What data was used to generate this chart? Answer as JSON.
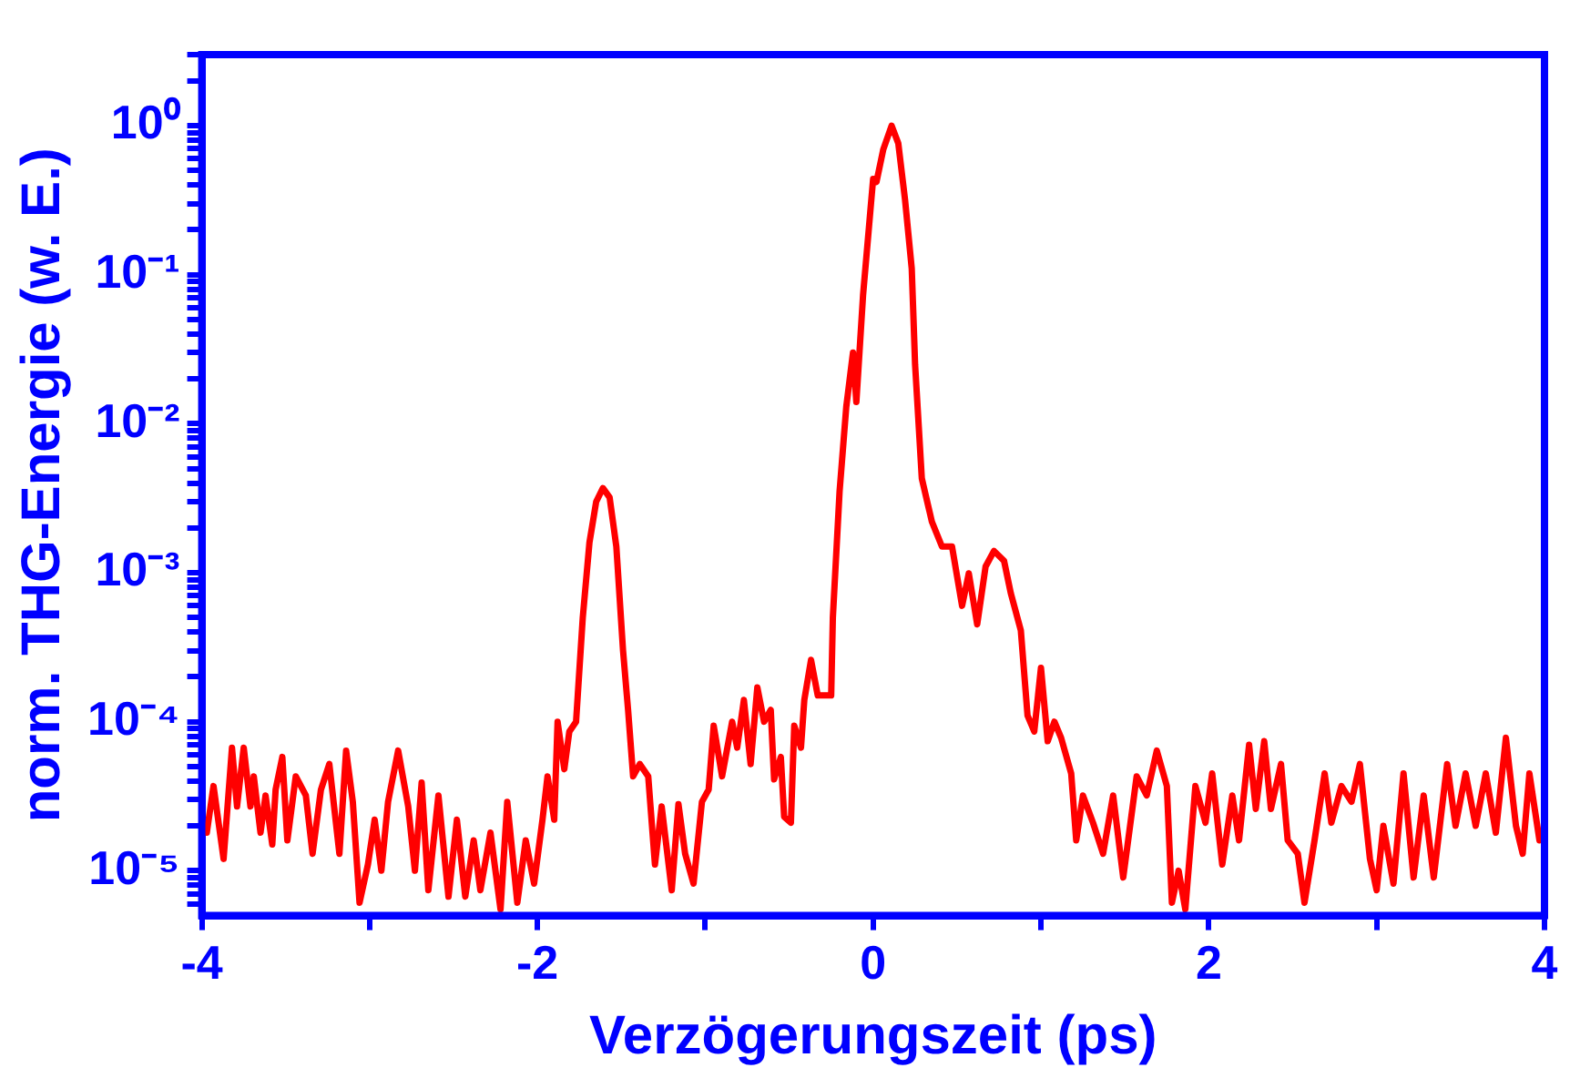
{
  "chart_data": {
    "type": "line",
    "xlabel": "Verzögerungszeit (ps)",
    "ylabel": "norm. THG-Energie (w. E.)",
    "log": "y",
    "grid": false,
    "legend": false,
    "marker": "none",
    "line_style": "solid",
    "xlim": [
      -4,
      4
    ],
    "xticks": [
      -4,
      {
        "value": -3,
        "label": null
      },
      -2,
      {
        "value": -1,
        "label": null
      },
      0,
      {
        "value": 1,
        "label": null
      },
      2,
      {
        "value": 3,
        "label": null
      },
      4
    ],
    "ylim": [
      5e-06,
      3
    ],
    "yticks": [
      {
        "value": 6e-06,
        "label": null
      },
      {
        "value": 7e-06,
        "label": null
      },
      {
        "value": 8e-06,
        "label": null
      },
      {
        "value": 9e-06,
        "label": null
      },
      {
        "value": 1e-05,
        "label": "10⁻⁵"
      },
      {
        "value": 2e-05,
        "label": null
      },
      {
        "value": 3e-05,
        "label": null
      },
      {
        "value": 4e-05,
        "label": null
      },
      {
        "value": 5e-05,
        "label": null
      },
      {
        "value": 6e-05,
        "label": null
      },
      {
        "value": 7e-05,
        "label": null
      },
      {
        "value": 8e-05,
        "label": null
      },
      {
        "value": 9e-05,
        "label": null
      },
      {
        "value": 0.0001,
        "label": "10⁻⁴"
      },
      {
        "value": 0.0002,
        "label": null
      },
      {
        "value": 0.0003,
        "label": null
      },
      {
        "value": 0.0004,
        "label": null
      },
      {
        "value": 0.0005,
        "label": null
      },
      {
        "value": 0.0006,
        "label": null
      },
      {
        "value": 0.0007,
        "label": null
      },
      {
        "value": 0.0008,
        "label": null
      },
      {
        "value": 0.0009,
        "label": null
      },
      {
        "value": 0.001,
        "label": "10⁻³"
      },
      {
        "value": 0.002,
        "label": null
      },
      {
        "value": 0.003,
        "label": null
      },
      {
        "value": 0.004,
        "label": null
      },
      {
        "value": 0.005,
        "label": null
      },
      {
        "value": 0.006,
        "label": null
      },
      {
        "value": 0.007,
        "label": null
      },
      {
        "value": 0.008,
        "label": null
      },
      {
        "value": 0.009,
        "label": null
      },
      {
        "value": 0.01,
        "label": "10⁻²"
      },
      {
        "value": 0.02,
        "label": null
      },
      {
        "value": 0.03,
        "label": null
      },
      {
        "value": 0.04,
        "label": null
      },
      {
        "value": 0.05,
        "label": null
      },
      {
        "value": 0.06,
        "label": null
      },
      {
        "value": 0.07,
        "label": null
      },
      {
        "value": 0.08,
        "label": null
      },
      {
        "value": 0.09,
        "label": null
      },
      {
        "value": 0.1,
        "label": "10⁻¹"
      },
      {
        "value": 0.2,
        "label": null
      },
      {
        "value": 0.3,
        "label": null
      },
      {
        "value": 0.4,
        "label": null
      },
      {
        "value": 0.5,
        "label": null
      },
      {
        "value": 0.6,
        "label": null
      },
      {
        "value": 0.7,
        "label": null
      },
      {
        "value": 0.8,
        "label": null
      },
      {
        "value": 0.9,
        "label": null
      },
      {
        "value": 1,
        "label": "10⁰"
      },
      {
        "value": 2,
        "label": null
      },
      {
        "value": 3,
        "label": null
      }
    ],
    "series": [
      {
        "color": "#ff0000",
        "x": [
          -3.97,
          -3.93,
          -3.87,
          -3.82,
          -3.79,
          -3.75,
          -3.71,
          -3.69,
          -3.65,
          -3.62,
          -3.58,
          -3.56,
          -3.52,
          -3.49,
          -3.44,
          -3.38,
          -3.34,
          -3.29,
          -3.24,
          -3.18,
          -3.14,
          -3.1,
          -3.06,
          -3.01,
          -2.97,
          -2.93,
          -2.89,
          -2.83,
          -2.77,
          -2.73,
          -2.69,
          -2.65,
          -2.59,
          -2.53,
          -2.48,
          -2.43,
          -2.38,
          -2.34,
          -2.28,
          -2.22,
          -2.18,
          -2.12,
          -2.07,
          -2.02,
          -1.97,
          -1.94,
          -1.9,
          -1.88,
          -1.84,
          -1.81,
          -1.77,
          -1.73,
          -1.69,
          -1.65,
          -1.61,
          -1.57,
          -1.53,
          -1.49,
          -1.46,
          -1.43,
          -1.39,
          -1.34,
          -1.3,
          -1.26,
          -1.2,
          -1.16,
          -1.12,
          -1.07,
          -1.02,
          -0.98,
          -0.95,
          -0.9,
          -0.84,
          -0.81,
          -0.77,
          -0.73,
          -0.69,
          -0.65,
          -0.61,
          -0.59,
          -0.55,
          -0.53,
          -0.49,
          -0.47,
          -0.43,
          -0.41,
          -0.37,
          -0.33,
          -0.25,
          -0.24,
          -0.2,
          -0.16,
          -0.12,
          -0.1,
          -0.06,
          0.0,
          0.02,
          0.06,
          0.11,
          0.15,
          0.19,
          0.23,
          0.25,
          0.29,
          0.35,
          0.41,
          0.47,
          0.53,
          0.57,
          0.62,
          0.67,
          0.72,
          0.78,
          0.82,
          0.88,
          0.92,
          0.96,
          1.0,
          1.04,
          1.08,
          1.12,
          1.18,
          1.21,
          1.25,
          1.31,
          1.37,
          1.43,
          1.49,
          1.57,
          1.63,
          1.69,
          1.75,
          1.78,
          1.82,
          1.86,
          1.92,
          1.98,
          2.02,
          2.08,
          2.14,
          2.18,
          2.24,
          2.28,
          2.33,
          2.37,
          2.43,
          2.47,
          2.53,
          2.57,
          2.63,
          2.69,
          2.73,
          2.79,
          2.85,
          2.9,
          2.96,
          3.0,
          3.04,
          3.1,
          3.16,
          3.22,
          3.28,
          3.34,
          3.42,
          3.47,
          3.53,
          3.59,
          3.65,
          3.71,
          3.77,
          3.83,
          3.87,
          3.91,
          3.97
        ],
        "values": [
          1.8e-05,
          3.7e-05,
          1.2e-05,
          6.7e-05,
          2.7e-05,
          6.7e-05,
          2.7e-05,
          4.3e-05,
          1.8e-05,
          3.2e-05,
          1.5e-05,
          3.5e-05,
          5.8e-05,
          1.6e-05,
          4.3e-05,
          3.2e-05,
          1.3e-05,
          3.5e-05,
          5.2e-05,
          1.3e-05,
          6.4e-05,
          2.9e-05,
          6.1e-06,
          1.1e-05,
          2.2e-05,
          1e-05,
          2.9e-05,
          6.4e-05,
          2.7e-05,
          1e-05,
          3.9e-05,
          7.4e-06,
          3.2e-05,
          6.7e-06,
          2.2e-05,
          6.7e-06,
          1.6e-05,
          7.4e-06,
          1.8e-05,
          5.5e-06,
          2.9e-05,
          6.1e-06,
          1.6e-05,
          8.2e-06,
          2.2e-05,
          4.3e-05,
          2.2e-05,
          0.0001,
          4.8e-05,
          8.6e-05,
          0.0001,
          0.0005,
          0.0016,
          0.003,
          0.0037,
          0.0032,
          0.0015,
          0.0003,
          0.00012,
          4.3e-05,
          5.2e-05,
          4.3e-05,
          1.1e-05,
          2.7e-05,
          7.4e-06,
          2.8e-05,
          1.3e-05,
          8.2e-06,
          2.9e-05,
          3.5e-05,
          9.4e-05,
          4.3e-05,
          0.0001,
          6.7e-05,
          0.00014,
          5.2e-05,
          0.00017,
          0.0001,
          0.00012,
          4.1e-05,
          5.8e-05,
          2.3e-05,
          2.1e-05,
          9.4e-05,
          6.7e-05,
          0.00014,
          0.00026,
          0.00015,
          0.00015,
          0.0005,
          0.0035,
          0.013,
          0.03,
          0.014,
          0.073,
          0.44,
          0.42,
          0.69,
          1.0,
          0.76,
          0.32,
          0.11,
          0.025,
          0.0043,
          0.0022,
          0.0015,
          0.0015,
          0.0006,
          0.00099,
          0.00045,
          0.0011,
          0.0014,
          0.0012,
          0.00073,
          0.00041,
          0.00011,
          8.6e-05,
          0.00023,
          7.4e-05,
          0.0001,
          7.8e-05,
          4.5e-05,
          1.6e-05,
          3.2e-05,
          2.1e-05,
          1.3e-05,
          3.2e-05,
          9e-06,
          4.3e-05,
          3.2e-05,
          6.4e-05,
          3.7e-05,
          6.1e-06,
          1e-05,
          5.5e-06,
          3.7e-05,
          2.1e-05,
          4.5e-05,
          1.1e-05,
          3.2e-05,
          1.6e-05,
          7e-05,
          2.6e-05,
          7.4e-05,
          2.6e-05,
          5.2e-05,
          1.6e-05,
          1.3e-05,
          6.1e-06,
          1.6e-05,
          4.5e-05,
          2.1e-05,
          3.7e-05,
          2.9e-05,
          5.2e-05,
          1.2e-05,
          7.4e-06,
          2e-05,
          8.2e-06,
          4.5e-05,
          9e-06,
          3.2e-05,
          9e-06,
          5.2e-05,
          2e-05,
          4.5e-05,
          2e-05,
          4.5e-05,
          1.8e-05,
          7.8e-05,
          2e-05,
          1.3e-05,
          4.5e-05,
          1.6e-05
        ]
      }
    ]
  }
}
